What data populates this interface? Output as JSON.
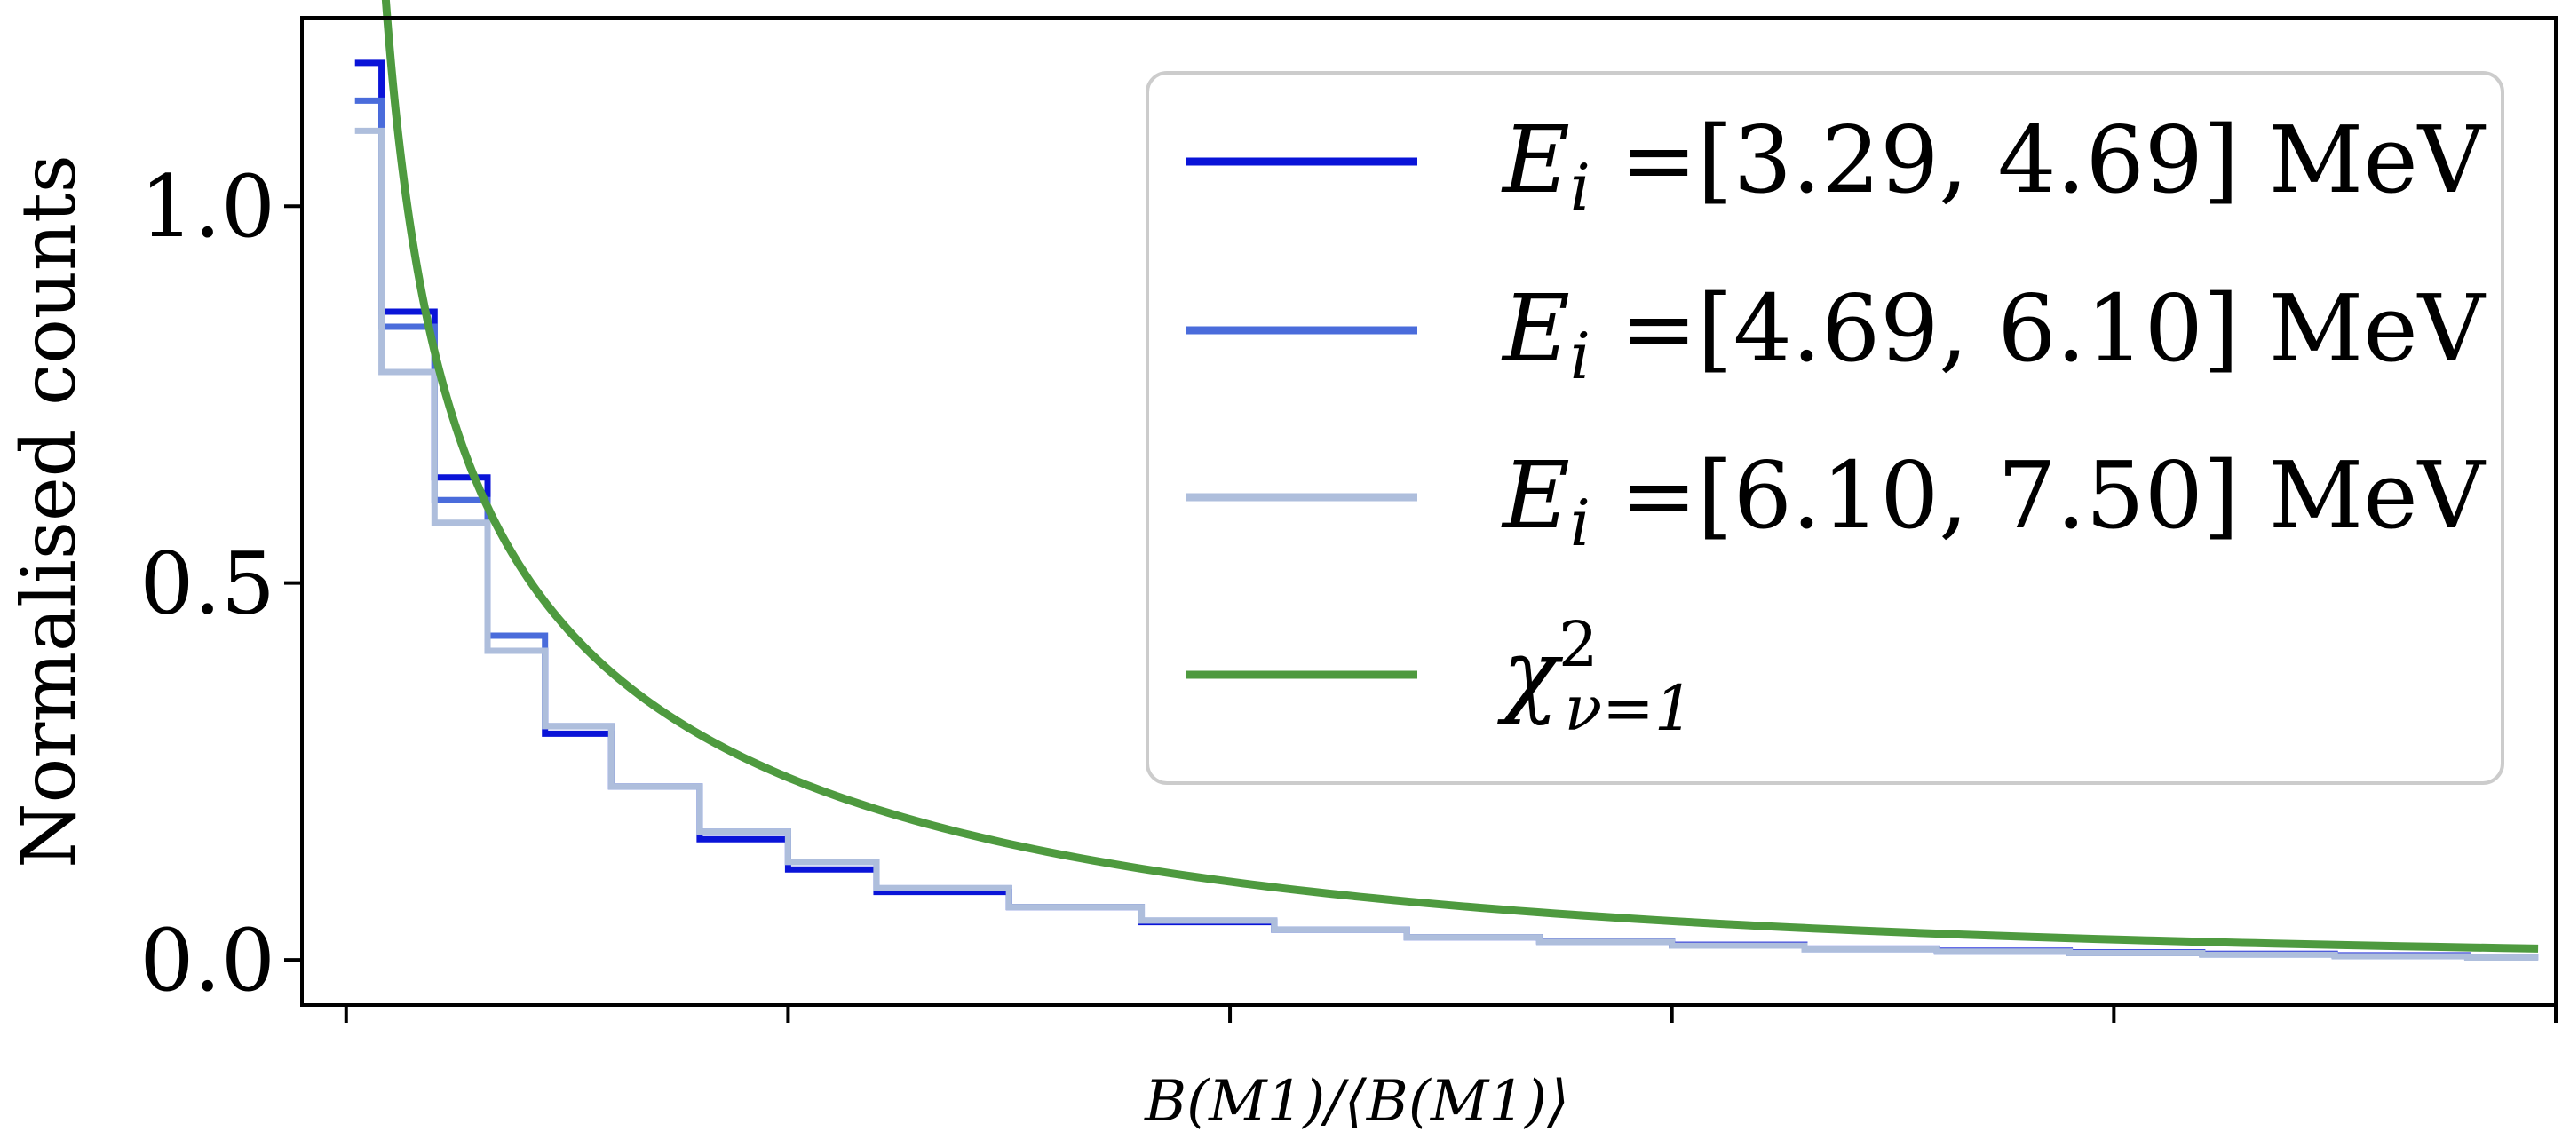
{
  "chart_data": {
    "type": "line",
    "title": "",
    "xlabel": "B(M1)/⟨B(M1)⟩",
    "ylabel": "Normalised counts",
    "xlim": [
      -0.1,
      5.0
    ],
    "ylim": [
      -0.06,
      1.25
    ],
    "x_ticks": [
      0,
      1,
      2,
      3,
      4,
      5
    ],
    "x_tick_labels_shown": false,
    "y_ticks": [
      0.0,
      0.5,
      1.0
    ],
    "y_tick_labels": [
      "0.0",
      "0.5",
      "1.0"
    ],
    "grid": false,
    "legend_position": "top-right",
    "bin_edges": [
      0.02,
      0.08,
      0.2,
      0.32,
      0.45,
      0.6,
      0.8,
      1.0,
      1.2,
      1.5,
      1.8,
      2.1,
      2.4,
      2.7,
      3.0,
      3.3,
      3.6,
      3.9,
      4.2,
      4.5,
      4.8,
      4.96
    ],
    "series": [
      {
        "name": "E_i =[3.29, 4.69] MeV",
        "color": "#0a14d8",
        "style": "step",
        "values": [
          1.19,
          0.86,
          0.64,
          0.41,
          0.3,
          0.23,
          0.16,
          0.12,
          0.09,
          0.07,
          0.05,
          0.04,
          0.03,
          0.025,
          0.02,
          0.015,
          0.012,
          0.01,
          0.008,
          0.006,
          0.004
        ]
      },
      {
        "name": "E_i =[4.69, 6.10] MeV",
        "color": "#4a6cdb",
        "style": "step",
        "values": [
          1.14,
          0.84,
          0.61,
          0.43,
          0.31,
          0.23,
          0.17,
          0.13,
          0.095,
          0.07,
          0.052,
          0.04,
          0.03,
          0.024,
          0.019,
          0.014,
          0.011,
          0.009,
          0.007,
          0.005,
          0.003
        ]
      },
      {
        "name": "E_i =[6.10, 7.50] MeV",
        "color": "#aebedc",
        "style": "step",
        "values": [
          1.1,
          0.78,
          0.58,
          0.41,
          0.31,
          0.23,
          0.17,
          0.13,
          0.095,
          0.07,
          0.052,
          0.04,
          0.03,
          0.024,
          0.019,
          0.014,
          0.011,
          0.009,
          0.007,
          0.005,
          0.003
        ]
      },
      {
        "name": "χ²_{ν=1}",
        "color": "#4e9a3f",
        "style": "curve",
        "function": "chi2_nu1",
        "x_start": 0.04,
        "x_end": 4.96
      }
    ]
  }
}
